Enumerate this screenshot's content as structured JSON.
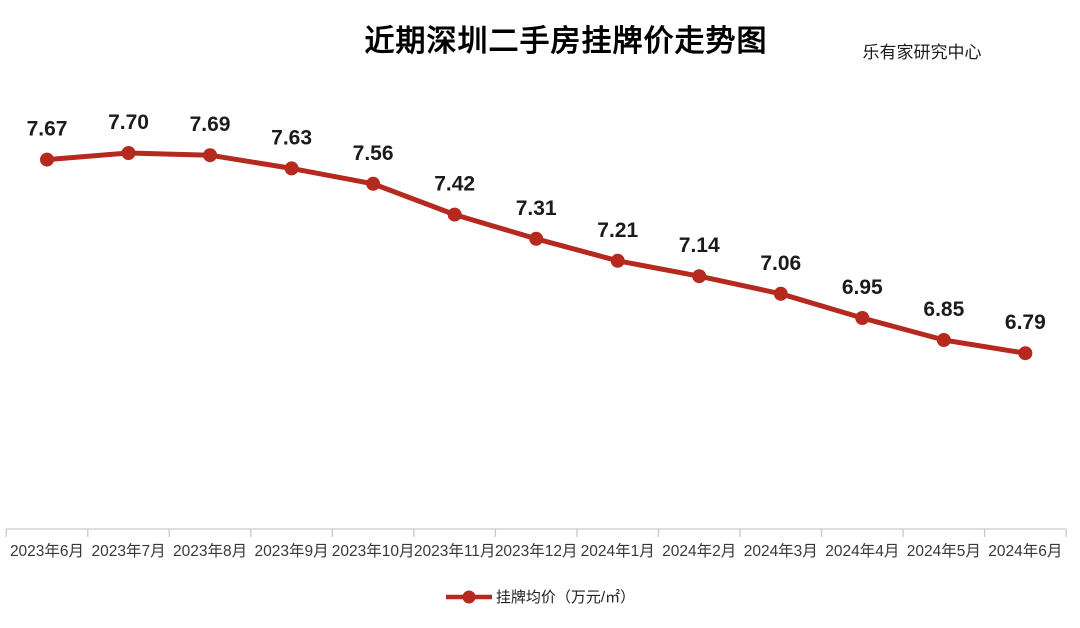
{
  "title": "近期深圳二手房挂牌价走势图",
  "credit": "乐有家研究中心",
  "chart_data": {
    "type": "line",
    "title": "近期深圳二手房挂牌价走势图",
    "source": "乐有家研究中心",
    "categories": [
      "2023年6月",
      "2023年7月",
      "2023年8月",
      "2023年9月",
      "2023年10月",
      "2023年11月",
      "2023年12月",
      "2024年1月",
      "2024年2月",
      "2024年3月",
      "2024年4月",
      "2024年5月",
      "2024年6月"
    ],
    "series": [
      {
        "name": "挂牌均价（万元/㎡）",
        "values": [
          7.67,
          7.7,
          7.69,
          7.63,
          7.56,
          7.42,
          7.31,
          7.21,
          7.14,
          7.06,
          6.95,
          6.85,
          6.79
        ]
      }
    ],
    "legend": {
      "label": "挂牌均价（万元/㎡）",
      "position": "bottom"
    },
    "value_labels": true,
    "value_format": "0.00",
    "grid": false,
    "y_axis_visible": false,
    "colors": {
      "line": "#b5291e",
      "marker": "#b5291e",
      "value_label": "#1b1b1b",
      "axis": "#c9c9c9",
      "category_label": "#383838"
    }
  }
}
